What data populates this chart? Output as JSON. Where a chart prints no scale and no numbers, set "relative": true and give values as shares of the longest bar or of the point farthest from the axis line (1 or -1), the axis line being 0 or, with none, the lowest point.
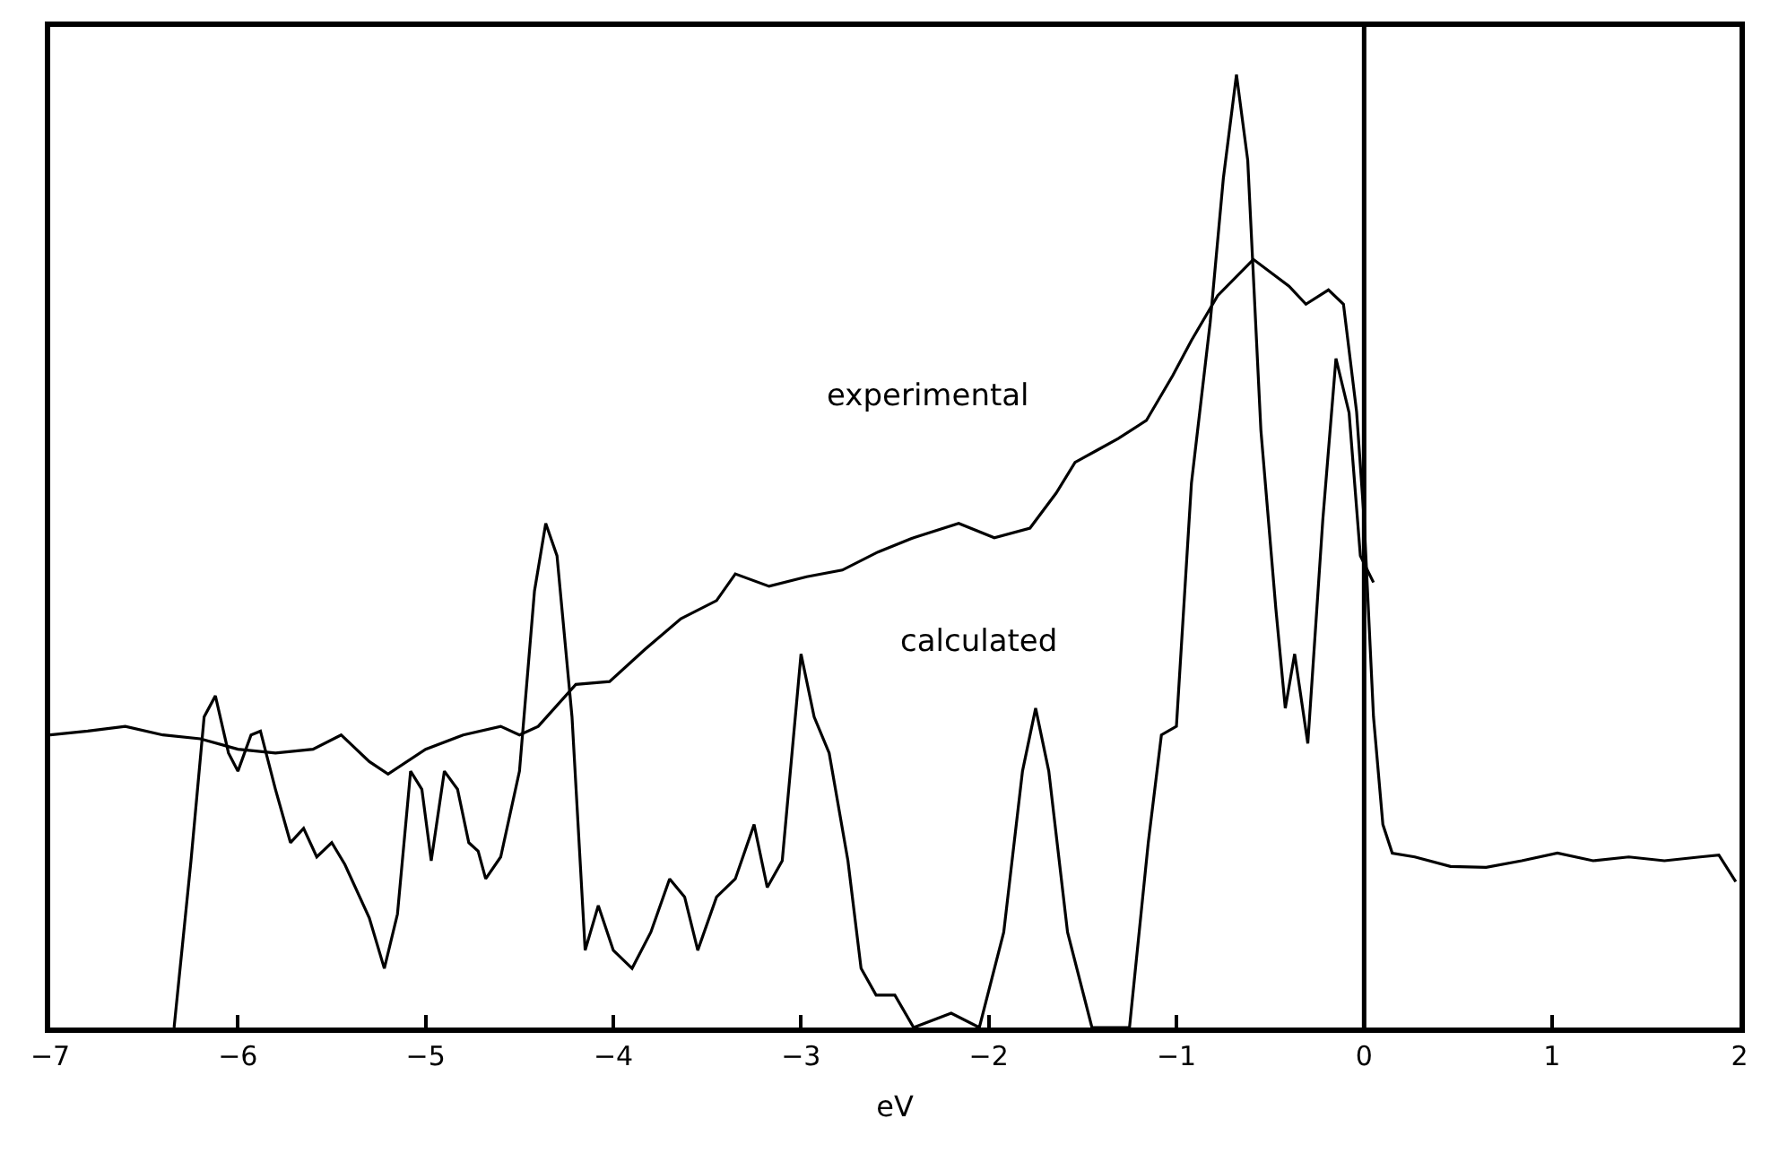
{
  "chart_data": {
    "type": "line",
    "relative": true,
    "xlabel": "eV",
    "xlim": [
      -7,
      2
    ],
    "xticks": [
      -7,
      -6,
      -5,
      -4,
      -3,
      -2,
      -1,
      0,
      1,
      2
    ],
    "marker": "none",
    "line_style": "solid",
    "tick_labels": "x",
    "ref_lines": [
      {
        "axis": "x",
        "value": 0,
        "label": null,
        "color": "#000000"
      }
    ],
    "annotations": [
      "experimental",
      "calculated"
    ],
    "series": [
      {
        "color": "#000000",
        "x": [
          -7,
          -6.8,
          -6.6,
          -6.4,
          -6.2,
          -6.0,
          -5.8,
          -5.6,
          -5.45,
          -5.3,
          -5.2,
          -5.0,
          -4.8,
          -4.6,
          -4.5,
          -4.4,
          -4.2,
          -4.02,
          -3.83,
          -3.64,
          -3.45,
          -3.35,
          -3.17,
          -2.97,
          -2.78,
          -2.59,
          -2.4,
          -2.16,
          -1.97,
          -1.78,
          -1.64,
          -1.54,
          -1.43,
          -1.31,
          -1.16,
          -1.02,
          -0.92,
          -0.78,
          -0.59,
          -0.4,
          -0.31,
          -0.19,
          -0.11,
          -0.04,
          0.0,
          0.05,
          0.1,
          0.15,
          0.27,
          0.46,
          0.65,
          0.84,
          1.03,
          1.22,
          1.41,
          1.6,
          1.79,
          1.89,
          1.98
        ],
        "values": [
          0.307,
          0.311,
          0.316,
          0.307,
          0.303,
          0.292,
          0.288,
          0.292,
          0.307,
          0.279,
          0.266,
          0.292,
          0.307,
          0.316,
          0.307,
          0.316,
          0.36,
          0.363,
          0.397,
          0.429,
          0.448,
          0.476,
          0.463,
          0.473,
          0.48,
          0.499,
          0.514,
          0.529,
          0.514,
          0.524,
          0.561,
          0.593,
          0.605,
          0.618,
          0.637,
          0.684,
          0.721,
          0.768,
          0.806,
          0.778,
          0.759,
          0.774,
          0.759,
          0.646,
          0.533,
          0.326,
          0.213,
          0.183,
          0.179,
          0.169,
          0.168,
          0.175,
          0.183,
          0.175,
          0.179,
          0.175,
          0.179,
          0.181,
          0.153
        ]
      },
      {
        "color": "#000000",
        "x": [
          -6.34,
          -6.25,
          -6.18,
          -6.12,
          -6.05,
          -6.0,
          -5.93,
          -5.88,
          -5.8,
          -5.72,
          -5.65,
          -5.58,
          -5.5,
          -5.43,
          -5.3,
          -5.22,
          -5.15,
          -5.08,
          -5.02,
          -4.97,
          -4.9,
          -4.83,
          -4.77,
          -4.72,
          -4.68,
          -4.6,
          -4.5,
          -4.42,
          -4.36,
          -4.3,
          -4.22,
          -4.15,
          -4.08,
          -4.0,
          -3.9,
          -3.8,
          -3.7,
          -3.62,
          -3.55,
          -3.45,
          -3.35,
          -3.25,
          -3.18,
          -3.1,
          -3.0,
          -2.93,
          -2.85,
          -2.75,
          -2.68,
          -2.6,
          -2.5,
          -2.4,
          -2.2,
          -2.05,
          -1.92,
          -1.82,
          -1.75,
          -1.68,
          -1.58,
          -1.45,
          -1.25,
          -1.15,
          -1.08,
          -1.0,
          -0.92,
          -0.82,
          -0.75,
          -0.68,
          -0.62,
          -0.55,
          -0.47,
          -0.42,
          -0.37,
          -0.3,
          -0.22,
          -0.15,
          -0.08,
          -0.02,
          0.05
        ],
        "values": [
          0,
          0.175,
          0.326,
          0.348,
          0.288,
          0.269,
          0.307,
          0.311,
          0.25,
          0.194,
          0.209,
          0.179,
          0.194,
          0.171,
          0.115,
          0.062,
          0.119,
          0.269,
          0.25,
          0.175,
          0.269,
          0.25,
          0.194,
          0.185,
          0.156,
          0.179,
          0.269,
          0.458,
          0.529,
          0.495,
          0.326,
          0.081,
          0.128,
          0.081,
          0.062,
          0.1,
          0.156,
          0.137,
          0.081,
          0.137,
          0.156,
          0.213,
          0.147,
          0.175,
          0.392,
          0.326,
          0.288,
          0.175,
          0.062,
          0.034,
          0.034,
          0,
          0.015,
          0,
          0.1,
          0.269,
          0.335,
          0.269,
          0.1,
          0,
          0,
          0.194,
          0.307,
          0.316,
          0.571,
          0.74,
          0.891,
          1.0,
          0.91,
          0.627,
          0.439,
          0.335,
          0.392,
          0.298,
          0.533,
          0.702,
          0.645,
          0.495,
          0.467
        ]
      }
    ]
  }
}
